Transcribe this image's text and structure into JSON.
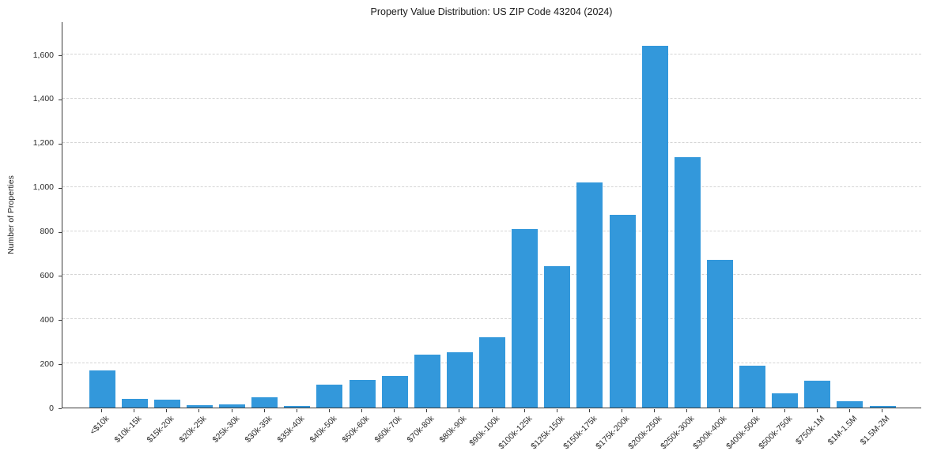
{
  "chart_data": {
    "type": "bar",
    "title": "Property Value Distribution: US ZIP Code 43204 (2024)",
    "xlabel": "",
    "ylabel": "Number of Properties",
    "categories": [
      "<$10k",
      "$10k-15k",
      "$15k-20k",
      "$20k-25k",
      "$25k-30k",
      "$30k-35k",
      "$35k-40k",
      "$40k-50k",
      "$50k-60k",
      "$60k-70k",
      "$70k-80k",
      "$80k-90k",
      "$90k-100k",
      "$100k-125k",
      "$125k-150k",
      "$150k-175k",
      "$175k-200k",
      "$200k-250k",
      "$250k-300k",
      "$300k-400k",
      "$400k-500k",
      "$500k-750k",
      "$750k-1M",
      "$1M-1.5M",
      "$1.5M-2M"
    ],
    "values": [
      170,
      40,
      35,
      10,
      15,
      45,
      8,
      105,
      125,
      145,
      240,
      250,
      320,
      810,
      640,
      1020,
      875,
      1640,
      1135,
      670,
      190,
      65,
      120,
      30,
      8
    ],
    "ylim": [
      0,
      1600
    ],
    "yticks": [
      0,
      200,
      400,
      600,
      800,
      1000,
      1200,
      1400,
      1600
    ],
    "grid": "horizontal-dashed",
    "legend": "none",
    "bar_color": "#3398db",
    "axis_color": "#3a3a3a",
    "gridline_color": "#d4d4d4"
  }
}
